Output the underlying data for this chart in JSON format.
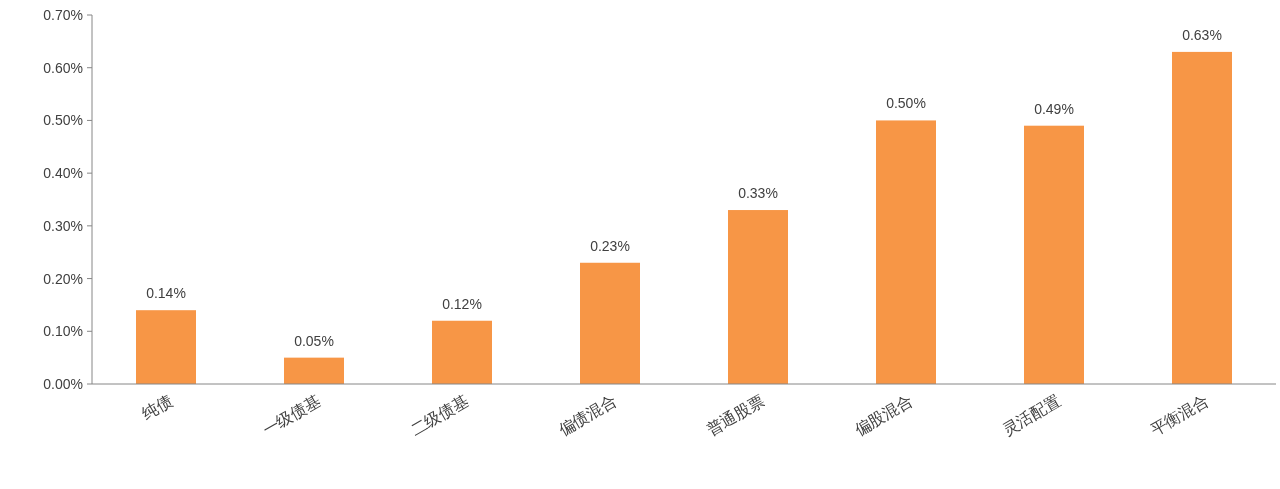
{
  "chart_data": {
    "type": "bar",
    "categories": [
      "纯债",
      "一级债基",
      "二级债基",
      "偏债混合",
      "普通股票",
      "偏股混合",
      "灵活配置",
      "平衡混合"
    ],
    "values": [
      0.14,
      0.05,
      0.12,
      0.23,
      0.33,
      0.5,
      0.49,
      0.63
    ],
    "value_labels": [
      "0.14%",
      "0.05%",
      "0.12%",
      "0.23%",
      "0.33%",
      "0.50%",
      "0.49%",
      "0.63%"
    ],
    "color": "#f79646",
    "ylim": [
      0,
      0.7
    ],
    "yticks": [
      {
        "value": 0,
        "label": "0.00%"
      },
      {
        "value": 0.1,
        "label": "0.10%"
      },
      {
        "value": 0.2,
        "label": "0.20%"
      },
      {
        "value": 0.3,
        "label": "0.30%"
      },
      {
        "value": 0.4,
        "label": "0.40%"
      },
      {
        "value": 0.5,
        "label": "0.50%"
      },
      {
        "value": 0.6,
        "label": "0.60%"
      },
      {
        "value": 0.7,
        "label": "0.70%"
      }
    ]
  }
}
